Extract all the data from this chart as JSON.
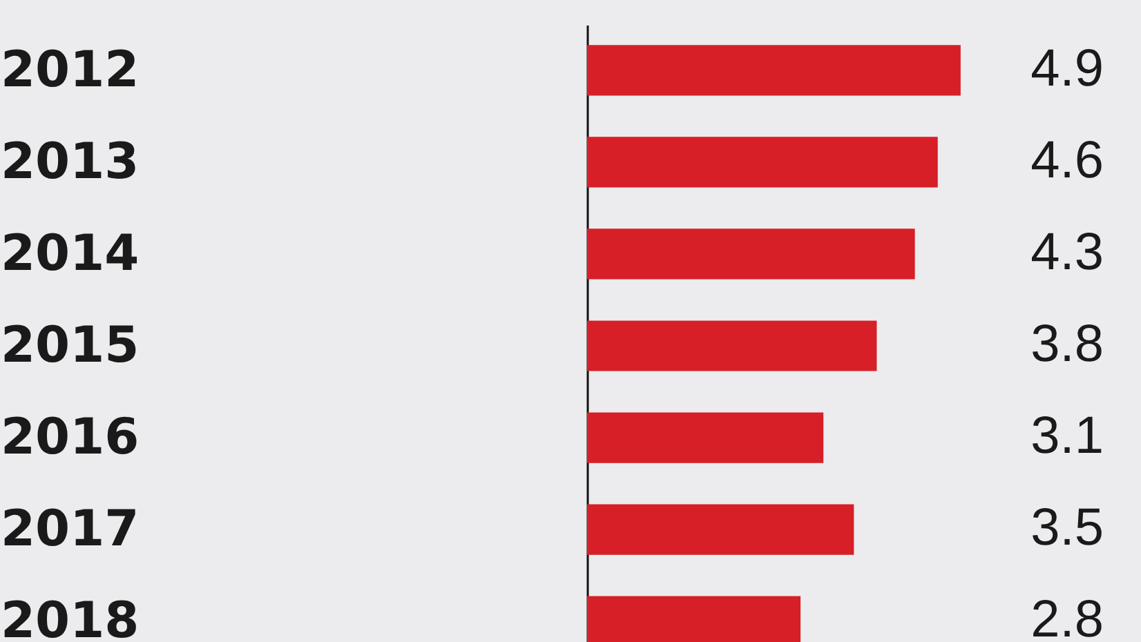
{
  "chart_data": {
    "type": "bar",
    "orientation": "horizontal",
    "categories": [
      "2012",
      "2013",
      "2014",
      "2015",
      "2016",
      "2017",
      "2018"
    ],
    "values": [
      4.9,
      4.6,
      4.3,
      3.8,
      3.1,
      3.5,
      2.8
    ],
    "color": "#d71f27",
    "data_labels": true
  }
}
